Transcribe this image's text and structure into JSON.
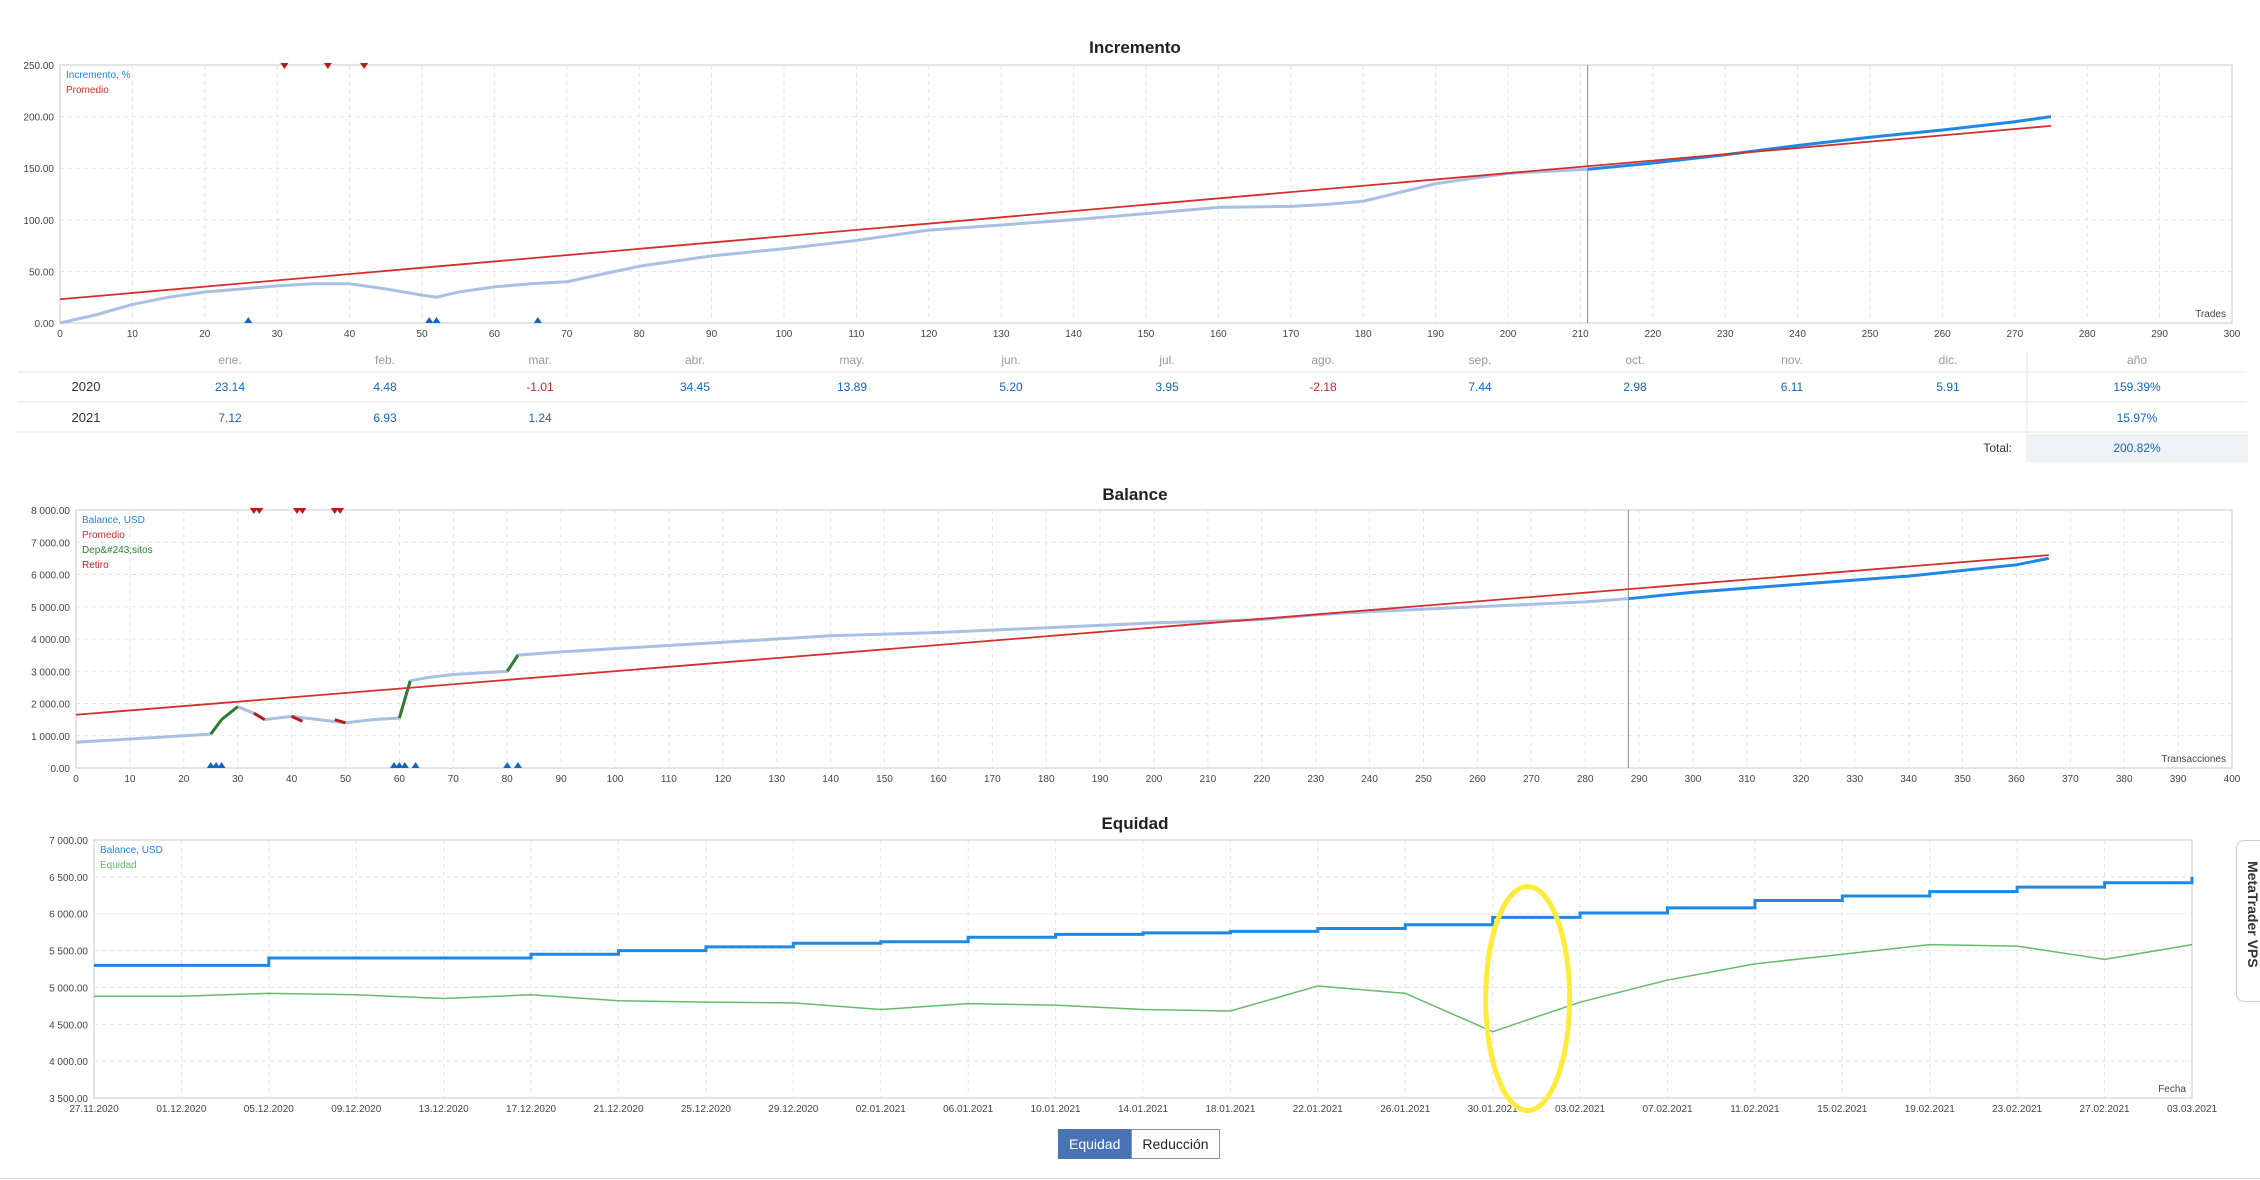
{
  "charts": {
    "increment": {
      "title": "Incremento",
      "legend": [
        "Incremento, %",
        "Promedio"
      ],
      "legend_colors": [
        "#1e88e5",
        "#d32f2f"
      ],
      "axis_label_x": "Trades",
      "y_ticks": [
        "250.00",
        "200.00",
        "150.00",
        "100.00",
        "50.00",
        "0.00"
      ],
      "x_ticks": [
        "0",
        "10",
        "20",
        "30",
        "40",
        "50",
        "60",
        "70",
        "80",
        "90",
        "100",
        "110",
        "120",
        "130",
        "140",
        "150",
        "160",
        "170",
        "180",
        "190",
        "200",
        "210",
        "220",
        "230",
        "240",
        "250",
        "260",
        "270",
        "280",
        "290",
        "300"
      ]
    },
    "balance": {
      "title": "Balance",
      "legend": [
        "Balance, USD",
        "Promedio",
        "Dep&#243;sitos",
        "Retiro"
      ],
      "legend_colors": [
        "#1e88e5",
        "#d32f2f",
        "#2e7d32",
        "#b71c1c"
      ],
      "axis_label_x": "Transacciones",
      "y_ticks": [
        "8 000.00",
        "7 000.00",
        "6 000.00",
        "5 000.00",
        "4 000.00",
        "3 000.00",
        "2 000.00",
        "1 000.00",
        "0.00"
      ],
      "x_ticks": [
        "0",
        "10",
        "20",
        "30",
        "40",
        "50",
        "60",
        "70",
        "80",
        "90",
        "100",
        "110",
        "120",
        "130",
        "140",
        "150",
        "160",
        "170",
        "180",
        "190",
        "200",
        "210",
        "220",
        "230",
        "240",
        "250",
        "260",
        "270",
        "280",
        "290",
        "300",
        "310",
        "320",
        "330",
        "340",
        "350",
        "360",
        "370",
        "380",
        "390",
        "400"
      ]
    },
    "equity": {
      "title": "Equidad",
      "legend": [
        "Balance, USD",
        "Equidad"
      ],
      "legend_colors": [
        "#1e88e5",
        "#66bb6a"
      ],
      "axis_label_x": "Fecha",
      "y_ticks": [
        "7 000.00",
        "6 500.00",
        "6 000.00",
        "5 500.00",
        "5 000.00",
        "4 500.00",
        "4 000.00",
        "3 500.00"
      ],
      "x_ticks": [
        "27.11.2020",
        "01.12.2020",
        "05.12.2020",
        "09.12.2020",
        "13.12.2020",
        "17.12.2020",
        "21.12.2020",
        "25.12.2020",
        "29.12.2020",
        "02.01.2021",
        "06.01.2021",
        "10.01.2021",
        "14.01.2021",
        "18.01.2021",
        "22.01.2021",
        "26.01.2021",
        "30.01.2021",
        "03.02.2021",
        "07.02.2021",
        "11.02.2021",
        "15.02.2021",
        "19.02.2021",
        "23.02.2021",
        "27.02.2021",
        "03.03.2021"
      ]
    }
  },
  "monthly_table": {
    "headers": [
      "ene.",
      "feb.",
      "mar.",
      "abr.",
      "may.",
      "jun.",
      "jul.",
      "ago.",
      "sep.",
      "oct.",
      "nov.",
      "dic.",
      "año"
    ],
    "rows": [
      {
        "year": "2020",
        "values": [
          "23.14",
          "4.48",
          "-1.01",
          "34.45",
          "13.89",
          "5.20",
          "3.95",
          "-2.18",
          "7.44",
          "2.98",
          "6.11",
          "5.91"
        ],
        "total": "159.39%"
      },
      {
        "year": "2021",
        "values": [
          "7.12",
          "6.93",
          "1.24",
          "",
          "",
          "",
          "",
          "",
          "",
          "",
          "",
          ""
        ],
        "total": "15.97%"
      }
    ],
    "total_label": "Total:",
    "total_value": "200.82%"
  },
  "tabs": {
    "equity": "Equidad",
    "drawdown": "Reducción"
  },
  "side_widget": "MetaTrader VPS",
  "chart_data": [
    {
      "type": "line",
      "title": "Incremento",
      "xlabel": "Trades",
      "xlim": [
        0,
        300
      ],
      "ylim": [
        0,
        250
      ],
      "series": [
        {
          "name": "Incremento, %",
          "x": [
            0,
            5,
            10,
            15,
            20,
            25,
            30,
            35,
            40,
            45,
            50,
            52,
            55,
            60,
            65,
            70,
            80,
            90,
            100,
            110,
            120,
            130,
            140,
            150,
            160,
            170,
            175,
            180,
            190,
            200,
            211,
            220,
            230,
            240,
            250,
            260,
            270,
            275
          ],
          "y": [
            0,
            8,
            18,
            25,
            30,
            33,
            36,
            38,
            38,
            33,
            27,
            25,
            30,
            35,
            38,
            40,
            55,
            65,
            72,
            80,
            90,
            95,
            100,
            106,
            112,
            113,
            115,
            118,
            135,
            145,
            149,
            155,
            163,
            172,
            180,
            187,
            195,
            200
          ]
        },
        {
          "name": "Promedio",
          "x": [
            0,
            275
          ],
          "y": [
            23,
            191
          ]
        }
      ],
      "markers_down_x": [
        31,
        37,
        42
      ],
      "markers_up_x": [
        26,
        51,
        52,
        66
      ],
      "split_x": 211
    },
    {
      "type": "line",
      "title": "Balance",
      "xlabel": "Transacciones",
      "xlim": [
        0,
        400
      ],
      "ylim": [
        0,
        8000
      ],
      "series": [
        {
          "name": "Balance, USD",
          "x": [
            0,
            10,
            20,
            25,
            27,
            30,
            33,
            35,
            40,
            45,
            50,
            55,
            60,
            62,
            65,
            70,
            75,
            80,
            82,
            90,
            100,
            120,
            140,
            160,
            180,
            200,
            220,
            230,
            240,
            260,
            280,
            288,
            300,
            320,
            340,
            360,
            366
          ],
          "y": [
            800,
            900,
            1000,
            1050,
            1500,
            1900,
            1700,
            1500,
            1600,
            1500,
            1400,
            1500,
            1550,
            2700,
            2800,
            2900,
            2950,
            3000,
            3500,
            3600,
            3700,
            3900,
            4100,
            4200,
            4350,
            4500,
            4600,
            4750,
            4850,
            5000,
            5150,
            5250,
            5450,
            5700,
            5950,
            6300,
            6500
          ]
        },
        {
          "name": "Promedio",
          "x": [
            0,
            366
          ],
          "y": [
            1650,
            6600
          ]
        }
      ],
      "markers_down_x": [
        33,
        34,
        41,
        42,
        48,
        49
      ],
      "markers_up_x": [
        25,
        26,
        27,
        59,
        60,
        61,
        63,
        80,
        82
      ],
      "split_x": 288
    },
    {
      "type": "line",
      "title": "Equidad",
      "xlabel": "Fecha",
      "categories": [
        "27.11.2020",
        "01.12.2020",
        "05.12.2020",
        "09.12.2020",
        "13.12.2020",
        "17.12.2020",
        "21.12.2020",
        "25.12.2020",
        "29.12.2020",
        "02.01.2021",
        "06.01.2021",
        "10.01.2021",
        "14.01.2021",
        "18.01.2021",
        "22.01.2021",
        "26.01.2021",
        "30.01.2021",
        "03.02.2021",
        "07.02.2021",
        "11.02.2021",
        "15.02.2021",
        "19.02.2021",
        "23.02.2021",
        "27.02.2021",
        "03.03.2021"
      ],
      "ylim": [
        3500,
        7000
      ],
      "series": [
        {
          "name": "Balance, USD",
          "values": [
            5300,
            5300,
            5400,
            5400,
            5400,
            5450,
            5500,
            5550,
            5600,
            5620,
            5680,
            5720,
            5740,
            5760,
            5800,
            5850,
            5950,
            6010,
            6080,
            6180,
            6240,
            6300,
            6360,
            6420,
            6500
          ]
        },
        {
          "name": "Equidad",
          "values": [
            4880,
            4880,
            4920,
            4900,
            4850,
            4900,
            4820,
            4800,
            4790,
            4700,
            4780,
            4760,
            4700,
            4680,
            5020,
            4920,
            4400,
            4800,
            5100,
            5320,
            5450,
            5580,
            5560,
            5380,
            5580
          ]
        }
      ]
    }
  ]
}
